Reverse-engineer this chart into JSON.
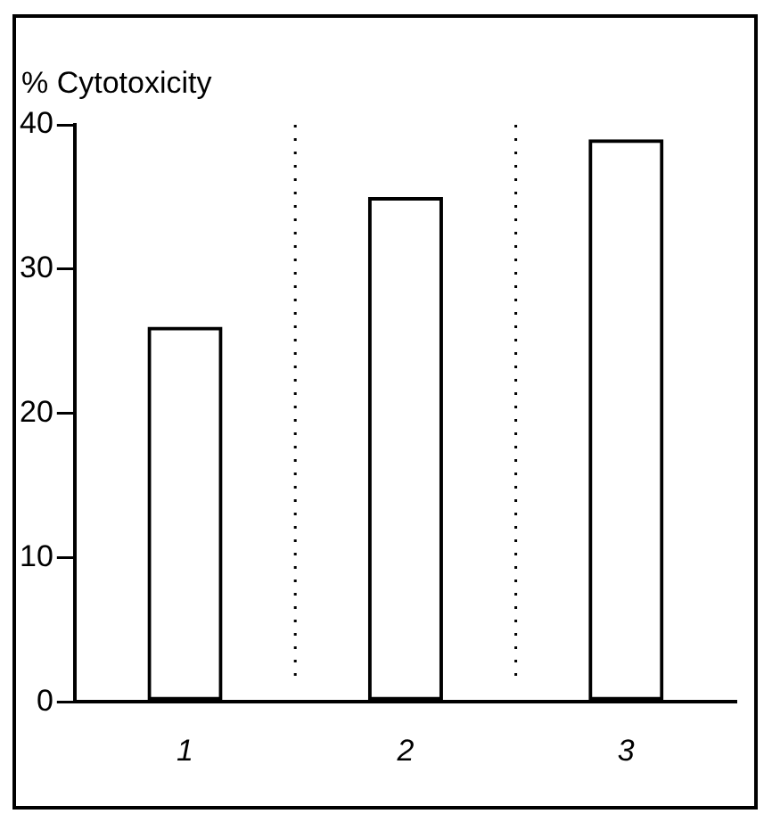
{
  "chart_data": {
    "type": "bar",
    "ylabel": "% Cytotoxicity",
    "categories": [
      "1",
      "2",
      "3"
    ],
    "values": [
      26,
      35,
      39
    ],
    "color": "#000000",
    "ylim": [
      0,
      40
    ],
    "yticks": [
      0,
      10,
      20,
      30,
      40
    ],
    "grid": "x"
  }
}
